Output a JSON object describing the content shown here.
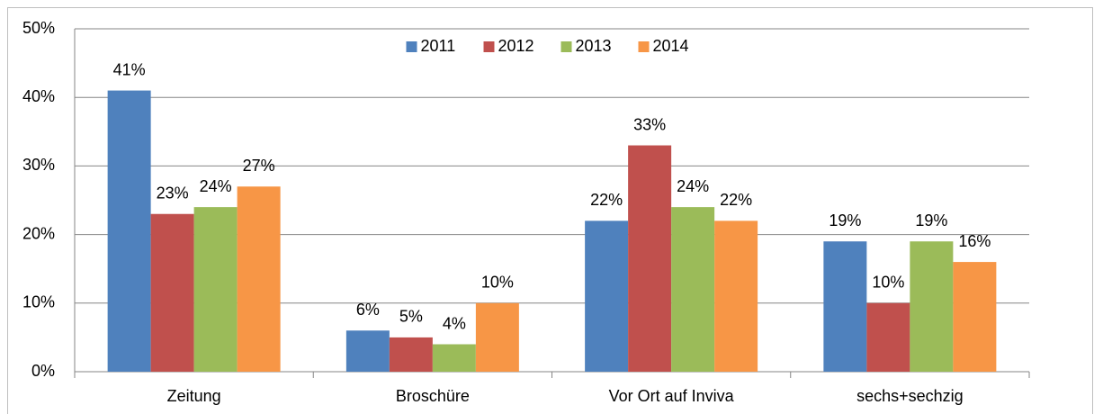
{
  "chart_data": {
    "type": "bar",
    "categories": [
      "Zeitung",
      "Broschüre",
      "Vor Ort auf Inviva",
      "sechs+sechzig"
    ],
    "series": [
      {
        "name": "2011",
        "color": "#4f81bd",
        "values": [
          41,
          6,
          22,
          19
        ],
        "value_labels": [
          "41%",
          "6%",
          "22%",
          "19%"
        ]
      },
      {
        "name": "2012",
        "color": "#c0504d",
        "values": [
          23,
          5,
          33,
          10
        ],
        "value_labels": [
          "23%",
          "5%",
          "33%",
          "10%"
        ]
      },
      {
        "name": "2013",
        "color": "#9bbb59",
        "values": [
          24,
          4,
          24,
          19
        ],
        "value_labels": [
          "24%",
          "4%",
          "24%",
          "19%"
        ]
      },
      {
        "name": "2014",
        "color": "#f79646",
        "values": [
          27,
          10,
          22,
          16
        ],
        "value_labels": [
          "27%",
          "10%",
          "22%",
          "16%"
        ]
      }
    ],
    "ylim": [
      0,
      50
    ],
    "yticks": [
      {
        "value": 0,
        "label": "0%"
      },
      {
        "value": 10,
        "label": "10%"
      },
      {
        "value": 20,
        "label": "20%"
      },
      {
        "value": 30,
        "label": "30%"
      },
      {
        "value": 40,
        "label": "40%"
      },
      {
        "value": 50,
        "label": "50%"
      }
    ],
    "grid": true,
    "legend": "top"
  }
}
